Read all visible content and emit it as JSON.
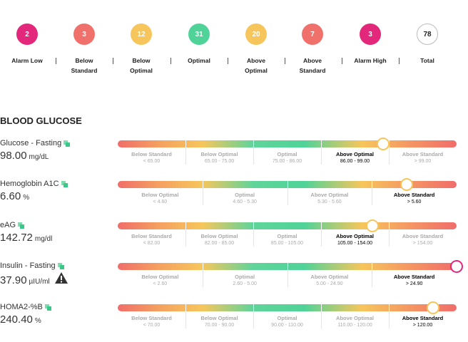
{
  "summary": [
    {
      "count": "2",
      "label": [
        "Alarm Low"
      ],
      "color": "#e3277b"
    },
    {
      "count": "3",
      "label": [
        "Below",
        "Standard"
      ],
      "color": "#f0706b"
    },
    {
      "count": "12",
      "label": [
        "Below",
        "Optimal"
      ],
      "color": "#f6c65c"
    },
    {
      "count": "31",
      "label": [
        "Optimal"
      ],
      "color": "#50d398"
    },
    {
      "count": "20",
      "label": [
        "Above",
        "Optimal"
      ],
      "color": "#f6c65c"
    },
    {
      "count": "7",
      "label": [
        "Above",
        "Standard"
      ],
      "color": "#f0706b"
    },
    {
      "count": "3",
      "label": [
        "Alarm High"
      ],
      "color": "#e3277b"
    },
    {
      "count": "78",
      "label": [
        "Total"
      ],
      "color": "#ffffff"
    }
  ],
  "section_title": "BLOOD GLUCOSE",
  "rows": [
    {
      "name": "Glucose - Fasting",
      "value": "98.00",
      "unit": "mg/dL",
      "active": 3,
      "segments": [
        {
          "label": "Below Standard",
          "range": "< 65.00"
        },
        {
          "label": "Below Optimal",
          "range": "65.00 - 75.00"
        },
        {
          "label": "Optimal",
          "range": "75.00 - 86.00"
        },
        {
          "label": "Above Optimal",
          "range": "86.00 - 99.00"
        },
        {
          "label": "Above Standard",
          "range": "> 99.00"
        }
      ]
    },
    {
      "name": "Hemoglobin A1C",
      "value": "6.60",
      "unit": "%",
      "active": 3,
      "segments": [
        {
          "label": "Below Optimal",
          "range": "< 4.60"
        },
        {
          "label": "Optimal",
          "range": "4.60 - 5.30"
        },
        {
          "label": "Above Optimal",
          "range": "5.30 - 5.60"
        },
        {
          "label": "Above Standard",
          "range": "> 5.60"
        }
      ]
    },
    {
      "name": "eAG",
      "value": "142.72",
      "unit": "mg/dl",
      "active": 3,
      "segments": [
        {
          "label": "Below Standard",
          "range": "< 82.00"
        },
        {
          "label": "Below Optimal",
          "range": "82.00 - 85.00"
        },
        {
          "label": "Optimal",
          "range": "85.00 - 105.00"
        },
        {
          "label": "Above Optimal",
          "range": "105.00 - 154.00"
        },
        {
          "label": "Above Standard",
          "range": "> 154.00"
        }
      ]
    },
    {
      "name": "Insulin - Fasting",
      "value": "37.90",
      "unit": "µIU/ml",
      "active": 3,
      "warning": true,
      "segments": [
        {
          "label": "Below Optimal",
          "range": "< 2.60"
        },
        {
          "label": "Optimal",
          "range": "2.60 - 5.00"
        },
        {
          "label": "Above Optimal",
          "range": "5.00 - 24.90"
        },
        {
          "label": "Above Standard",
          "range": "> 24.90"
        }
      ]
    },
    {
      "name": "HOMA2-%B",
      "value": "240.40",
      "unit": "%",
      "active": 4,
      "segments": [
        {
          "label": "Below Standard",
          "range": "< 70.00"
        },
        {
          "label": "Below Optimal",
          "range": "70.00 - 90.00"
        },
        {
          "label": "Optimal",
          "range": "90.00 - 110.00"
        },
        {
          "label": "Above Optimal",
          "range": "110.00 - 120.00"
        },
        {
          "label": "Above Standard",
          "range": "> 120.00"
        }
      ]
    }
  ]
}
